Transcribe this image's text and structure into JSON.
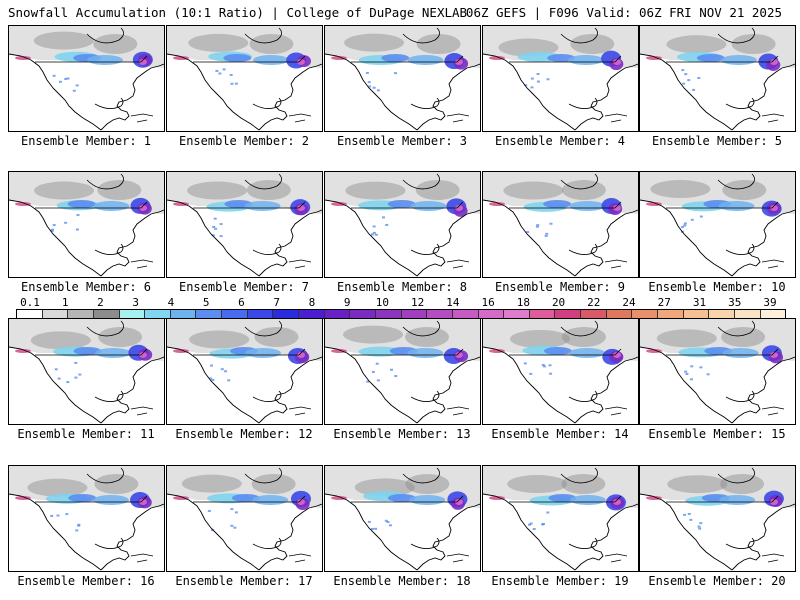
{
  "header": {
    "left_title": "Snowfall Accumulation (10:1 Ratio) | College of DuPage NEXLAB",
    "right_title": "06Z GEFS | F096 Valid: 06Z FRI NOV 21 2025"
  },
  "panels": [
    {
      "label": "Ensemble Member: 1"
    },
    {
      "label": "Ensemble Member: 2"
    },
    {
      "label": "Ensemble Member: 3"
    },
    {
      "label": "Ensemble Member: 4"
    },
    {
      "label": "Ensemble Member: 5"
    },
    {
      "label": "Ensemble Member: 6"
    },
    {
      "label": "Ensemble Member: 7"
    },
    {
      "label": "Ensemble Member: 8"
    },
    {
      "label": "Ensemble Member: 9"
    },
    {
      "label": "Ensemble Member: 10"
    },
    {
      "label": "Ensemble Member: 11"
    },
    {
      "label": "Ensemble Member: 12"
    },
    {
      "label": "Ensemble Member: 13"
    },
    {
      "label": "Ensemble Member: 14"
    },
    {
      "label": "Ensemble Member: 15"
    },
    {
      "label": "Ensemble Member: 16"
    },
    {
      "label": "Ensemble Member: 17"
    },
    {
      "label": "Ensemble Member: 18"
    },
    {
      "label": "Ensemble Member: 19"
    },
    {
      "label": "Ensemble Member: 20"
    }
  ],
  "colorbar": {
    "labels": [
      "0.1",
      "1",
      "2",
      "3",
      "4",
      "5",
      "6",
      "7",
      "8",
      "9",
      "10",
      "12",
      "14",
      "16",
      "18",
      "20",
      "22",
      "24",
      "27",
      "31",
      "35",
      "39"
    ],
    "colors": [
      "#ffffff",
      "#d9d9d9",
      "#b5b5b5",
      "#8c8c8c",
      "#a6f0f0",
      "#80d8f0",
      "#6fb2f0",
      "#5b8ef0",
      "#4a6bf0",
      "#3a48e8",
      "#2b2be0",
      "#4a1fcf",
      "#6a20c8",
      "#7a2bc2",
      "#8e35c0",
      "#a040c0",
      "#b64cc2",
      "#c85ac4",
      "#d66ac8",
      "#e07ccc",
      "#e05a9c",
      "#d04080",
      "#d85a6a",
      "#e07860",
      "#e8906a",
      "#f0a87a",
      "#f5c092",
      "#f8d4aa",
      "#fae4c4",
      "#fcf0dc"
    ]
  }
}
